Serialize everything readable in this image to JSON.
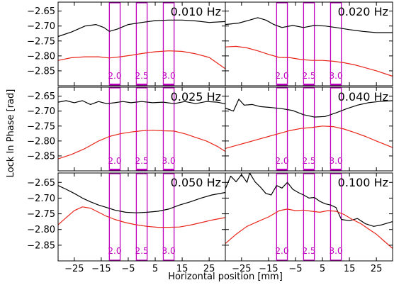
{
  "chart_data": {
    "type": "line",
    "xlabel": "Horizontal position [mm]",
    "ylabel": "Lock In Phase [rad]",
    "xlim": [
      -31,
      31
    ],
    "ylim": [
      -2.9,
      -2.62
    ],
    "yticks": [
      -2.85,
      -2.8,
      -2.75,
      -2.7,
      -2.65
    ],
    "ytick_labels": [
      "−2.85",
      "−2.80",
      "−2.75",
      "−2.70",
      "−2.65"
    ],
    "xticks": [
      -25,
      -15,
      -5,
      5,
      15,
      25
    ],
    "xtick_labels": [
      "−25",
      "−15",
      "−5",
      "5",
      "15",
      "25"
    ],
    "series_colors": {
      "upper": "#000000",
      "lower": "#e8261c"
    },
    "region_color": "#c000c0",
    "regions": [
      {
        "label": "2.0",
        "x0": -12,
        "x1": -8
      },
      {
        "label": "2.5",
        "x0": -2,
        "x1": 2
      },
      {
        "label": "3.0",
        "x0": 8,
        "x1": 12
      }
    ],
    "panels": [
      {
        "label": "0.010 Hz",
        "series": [
          {
            "values": [
              [
                -31,
                -2.735
              ],
              [
                -26,
                -2.72
              ],
              [
                -21,
                -2.7
              ],
              [
                -17,
                -2.695
              ],
              [
                -14,
                -2.705
              ],
              [
                -12,
                -2.718
              ],
              [
                -9,
                -2.71
              ],
              [
                -5,
                -2.695
              ],
              [
                0,
                -2.688
              ],
              [
                5,
                -2.682
              ],
              [
                10,
                -2.68
              ],
              [
                15,
                -2.68
              ],
              [
                20,
                -2.683
              ],
              [
                25,
                -2.688
              ],
              [
                31,
                -2.685
              ]
            ]
          },
          {
            "values": [
              [
                -31,
                -2.815
              ],
              [
                -26,
                -2.806
              ],
              [
                -21,
                -2.803
              ],
              [
                -16,
                -2.803
              ],
              [
                -12,
                -2.807
              ],
              [
                -8,
                -2.803
              ],
              [
                -4,
                -2.798
              ],
              [
                0,
                -2.792
              ],
              [
                5,
                -2.786
              ],
              [
                10,
                -2.783
              ],
              [
                15,
                -2.785
              ],
              [
                20,
                -2.793
              ],
              [
                25,
                -2.805
              ],
              [
                31,
                -2.843
              ]
            ]
          }
        ]
      },
      {
        "label": "0.020 Hz",
        "series": [
          {
            "values": [
              [
                -31,
                -2.695
              ],
              [
                -26,
                -2.69
              ],
              [
                -22,
                -2.68
              ],
              [
                -19,
                -2.672
              ],
              [
                -16,
                -2.68
              ],
              [
                -13,
                -2.695
              ],
              [
                -10,
                -2.705
              ],
              [
                -6,
                -2.698
              ],
              [
                -2,
                -2.705
              ],
              [
                2,
                -2.698
              ],
              [
                6,
                -2.7
              ],
              [
                10,
                -2.705
              ],
              [
                15,
                -2.712
              ],
              [
                20,
                -2.718
              ],
              [
                25,
                -2.722
              ],
              [
                31,
                -2.722
              ]
            ]
          },
          {
            "values": [
              [
                -31,
                -2.77
              ],
              [
                -27,
                -2.768
              ],
              [
                -23,
                -2.773
              ],
              [
                -19,
                -2.783
              ],
              [
                -15,
                -2.795
              ],
              [
                -11,
                -2.805
              ],
              [
                -7,
                -2.806
              ],
              [
                -3,
                -2.812
              ],
              [
                1,
                -2.815
              ],
              [
                5,
                -2.815
              ],
              [
                9,
                -2.818
              ],
              [
                13,
                -2.823
              ],
              [
                17,
                -2.83
              ],
              [
                21,
                -2.84
              ],
              [
                25,
                -2.85
              ],
              [
                29,
                -2.862
              ],
              [
                31,
                -2.868
              ]
            ]
          }
        ]
      },
      {
        "label": "0.025 Hz",
        "series": [
          {
            "values": [
              [
                -31,
                -2.67
              ],
              [
                -28,
                -2.665
              ],
              [
                -25,
                -2.672
              ],
              [
                -22,
                -2.665
              ],
              [
                -19,
                -2.678
              ],
              [
                -16,
                -2.668
              ],
              [
                -13,
                -2.675
              ],
              [
                -10,
                -2.672
              ],
              [
                -7,
                -2.668
              ],
              [
                -4,
                -2.672
              ],
              [
                0,
                -2.668
              ],
              [
                4,
                -2.672
              ],
              [
                8,
                -2.67
              ],
              [
                12,
                -2.675
              ],
              [
                16,
                -2.668
              ],
              [
                20,
                -2.675
              ],
              [
                24,
                -2.668
              ],
              [
                28,
                -2.67
              ],
              [
                31,
                -2.676
              ]
            ]
          },
          {
            "values": [
              [
                -31,
                -2.86
              ],
              [
                -26,
                -2.845
              ],
              [
                -21,
                -2.825
              ],
              [
                -16,
                -2.8
              ],
              [
                -12,
                -2.785
              ],
              [
                -8,
                -2.776
              ],
              [
                -4,
                -2.77
              ],
              [
                0,
                -2.766
              ],
              [
                4,
                -2.764
              ],
              [
                8,
                -2.766
              ],
              [
                12,
                -2.767
              ],
              [
                16,
                -2.776
              ],
              [
                20,
                -2.788
              ],
              [
                24,
                -2.8
              ],
              [
                28,
                -2.818
              ],
              [
                31,
                -2.835
              ]
            ]
          }
        ]
      },
      {
        "label": "0.040 Hz",
        "series": [
          {
            "values": [
              [
                -31,
                -2.69
              ],
              [
                -28,
                -2.7
              ],
              [
                -26,
                -2.66
              ],
              [
                -24,
                -2.68
              ],
              [
                -21,
                -2.678
              ],
              [
                -18,
                -2.685
              ],
              [
                -14,
                -2.688
              ],
              [
                -10,
                -2.692
              ],
              [
                -6,
                -2.698
              ],
              [
                -2,
                -2.712
              ],
              [
                2,
                -2.72
              ],
              [
                6,
                -2.718
              ],
              [
                10,
                -2.706
              ],
              [
                14,
                -2.692
              ],
              [
                18,
                -2.68
              ],
              [
                22,
                -2.672
              ],
              [
                26,
                -2.668
              ],
              [
                31,
                -2.665
              ]
            ]
          },
          {
            "values": [
              [
                -31,
                -2.825
              ],
              [
                -27,
                -2.815
              ],
              [
                -23,
                -2.805
              ],
              [
                -19,
                -2.795
              ],
              [
                -15,
                -2.785
              ],
              [
                -11,
                -2.775
              ],
              [
                -7,
                -2.765
              ],
              [
                -3,
                -2.758
              ],
              [
                1,
                -2.755
              ],
              [
                5,
                -2.75
              ],
              [
                9,
                -2.752
              ],
              [
                13,
                -2.76
              ],
              [
                17,
                -2.772
              ],
              [
                21,
                -2.785
              ],
              [
                25,
                -2.8
              ],
              [
                31,
                -2.822
              ]
            ]
          }
        ]
      },
      {
        "label": "0.050 Hz",
        "series": [
          {
            "values": [
              [
                -31,
                -2.66
              ],
              [
                -28,
                -2.672
              ],
              [
                -25,
                -2.685
              ],
              [
                -22,
                -2.7
              ],
              [
                -19,
                -2.712
              ],
              [
                -16,
                -2.722
              ],
              [
                -13,
                -2.73
              ],
              [
                -10,
                -2.738
              ],
              [
                -6,
                -2.745
              ],
              [
                -2,
                -2.747
              ],
              [
                2,
                -2.745
              ],
              [
                6,
                -2.742
              ],
              [
                10,
                -2.735
              ],
              [
                14,
                -2.722
              ],
              [
                18,
                -2.712
              ],
              [
                22,
                -2.7
              ],
              [
                26,
                -2.69
              ],
              [
                31,
                -2.682
              ]
            ]
          },
          {
            "values": [
              [
                -31,
                -2.785
              ],
              [
                -28,
                -2.762
              ],
              [
                -25,
                -2.74
              ],
              [
                -22,
                -2.728
              ],
              [
                -19,
                -2.732
              ],
              [
                -16,
                -2.745
              ],
              [
                -13,
                -2.758
              ],
              [
                -10,
                -2.768
              ],
              [
                -6,
                -2.778
              ],
              [
                -2,
                -2.785
              ],
              [
                2,
                -2.79
              ],
              [
                6,
                -2.793
              ],
              [
                10,
                -2.793
              ],
              [
                14,
                -2.792
              ],
              [
                18,
                -2.786
              ],
              [
                22,
                -2.778
              ],
              [
                26,
                -2.77
              ],
              [
                31,
                -2.762
              ]
            ]
          }
        ]
      },
      {
        "label": "0.100 Hz",
        "series": [
          {
            "values": [
              [
                -31,
                -2.67
              ],
              [
                -29,
                -2.63
              ],
              [
                -27,
                -2.648
              ],
              [
                -25,
                -2.625
              ],
              [
                -23,
                -2.65
              ],
              [
                -22,
                -2.62
              ],
              [
                -20,
                -2.648
              ],
              [
                -18,
                -2.665
              ],
              [
                -16,
                -2.685
              ],
              [
                -14,
                -2.69
              ],
              [
                -12,
                -2.66
              ],
              [
                -10,
                -2.668
              ],
              [
                -8,
                -2.65
              ],
              [
                -6,
                -2.672
              ],
              [
                -4,
                -2.682
              ],
              [
                -2,
                -2.69
              ],
              [
                0,
                -2.7
              ],
              [
                2,
                -2.698
              ],
              [
                4,
                -2.71
              ],
              [
                6,
                -2.718
              ],
              [
                8,
                -2.722
              ],
              [
                10,
                -2.73
              ],
              [
                12,
                -2.768
              ],
              [
                15,
                -2.772
              ],
              [
                18,
                -2.765
              ],
              [
                21,
                -2.782
              ],
              [
                24,
                -2.79
              ],
              [
                27,
                -2.785
              ],
              [
                31,
                -2.775
              ]
            ]
          },
          {
            "values": [
              [
                -31,
                -2.845
              ],
              [
                -27,
                -2.815
              ],
              [
                -23,
                -2.79
              ],
              [
                -19,
                -2.775
              ],
              [
                -15,
                -2.76
              ],
              [
                -11,
                -2.74
              ],
              [
                -8,
                -2.735
              ],
              [
                -5,
                -2.74
              ],
              [
                -2,
                -2.738
              ],
              [
                1,
                -2.742
              ],
              [
                4,
                -2.745
              ],
              [
                7,
                -2.74
              ],
              [
                10,
                -2.742
              ],
              [
                13,
                -2.752
              ],
              [
                16,
                -2.768
              ],
              [
                19,
                -2.78
              ],
              [
                22,
                -2.798
              ],
              [
                25,
                -2.815
              ],
              [
                28,
                -2.838
              ],
              [
                31,
                -2.86
              ]
            ]
          }
        ]
      }
    ]
  }
}
